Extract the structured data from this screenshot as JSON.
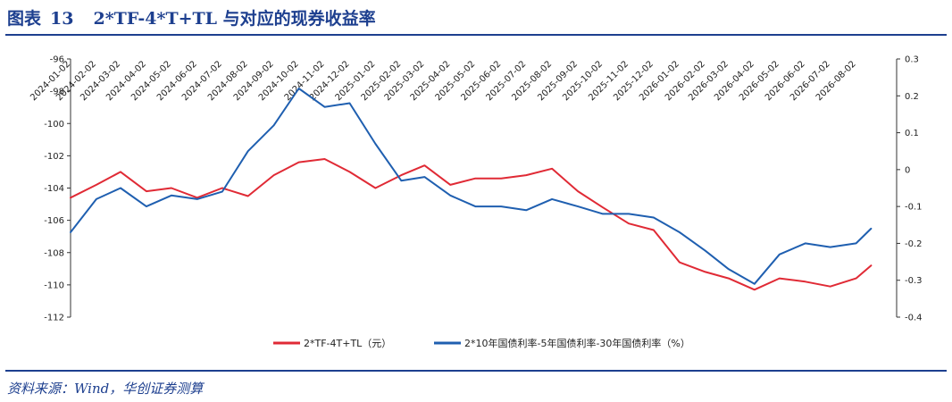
{
  "header": {
    "label": "图表",
    "number": "13",
    "title": "2*TF-4*T+TL 与对应的现券收益率"
  },
  "footer": {
    "source": "资料来源：Wind，华创证券测算"
  },
  "colors": {
    "series_futures": "#e02a35",
    "series_yield": "#1f5fb0",
    "brand": "#1d3f8f"
  },
  "chart_data": {
    "type": "line",
    "title": "",
    "x_ticks": [
      "2024-01-02",
      "2024-02-02",
      "2024-03-02",
      "2024-04-02",
      "2024-05-02",
      "2024-06-02",
      "2024-07-02",
      "2024-08-02",
      "2024-09-02",
      "2024-10-02",
      "2024-11-02",
      "2024-12-02",
      "2025-01-02",
      "2025-02-02",
      "2025-03-02",
      "2025-04-02",
      "2025-05-02",
      "2025-06-02",
      "2025-07-02",
      "2025-08-02",
      "2025-09-02",
      "2025-10-02",
      "2025-11-02",
      "2025-12-02",
      "2026-01-02",
      "2026-02-02",
      "2026-03-02",
      "2026-04-02",
      "2026-05-02",
      "2026-06-02",
      "2026-07-02",
      "2026-08-02"
    ],
    "y_left": {
      "min": -112,
      "max": -96,
      "step": 2,
      "ticks": [
        -96,
        -98,
        -100,
        -102,
        -104,
        -106,
        -108,
        -110,
        -112
      ]
    },
    "y_right": {
      "min": -0.4,
      "max": 0.3,
      "step": 0.1,
      "ticks": [
        0.3,
        0.2,
        0.1,
        0,
        -0.1,
        -0.2,
        -0.3,
        -0.4
      ]
    },
    "series": [
      {
        "name": "2*TF-4T+TL（元）",
        "axis": "left",
        "x": [
          "2024-01-02",
          "2024-02-02",
          "2024-03-02",
          "2024-04-02",
          "2024-05-02",
          "2024-06-02",
          "2024-07-02",
          "2024-08-02",
          "2024-09-02",
          "2024-10-02",
          "2024-11-02",
          "2024-12-02",
          "2025-01-02",
          "2025-02-02",
          "2025-03-02",
          "2025-04-02",
          "2025-05-02",
          "2025-06-02",
          "2025-07-02",
          "2025-08-02",
          "2025-09-02",
          "2025-10-02",
          "2025-11-02",
          "2025-12-02",
          "2026-01-02",
          "2026-02-02",
          "2026-03-02",
          "2026-04-02",
          "2026-05-02",
          "2026-06-02",
          "2026-07-02",
          "2026-08-02",
          "2026-08-20"
        ],
        "values": [
          -104.6,
          -103.8,
          -103.0,
          -104.2,
          -104.0,
          -104.6,
          -104.0,
          -104.5,
          -103.2,
          -102.4,
          -102.2,
          -103.0,
          -104.0,
          -103.2,
          -102.6,
          -103.8,
          -103.4,
          -103.4,
          -103.2,
          -102.8,
          -104.2,
          -105.2,
          -106.2,
          -106.6,
          -108.6,
          -109.2,
          -109.6,
          -110.3,
          -109.6,
          -109.8,
          -110.1,
          -109.6,
          -108.8
        ]
      },
      {
        "name": "2*10年国债利率-5年国债利率-30年国债利率（%）",
        "axis": "right",
        "x": [
          "2024-01-02",
          "2024-02-02",
          "2024-03-02",
          "2024-04-02",
          "2024-05-02",
          "2024-06-02",
          "2024-07-02",
          "2024-08-02",
          "2024-09-02",
          "2024-10-02",
          "2024-11-02",
          "2024-12-02",
          "2025-01-02",
          "2025-02-02",
          "2025-03-02",
          "2025-04-02",
          "2025-05-02",
          "2025-06-02",
          "2025-07-02",
          "2025-08-02",
          "2025-09-02",
          "2025-10-02",
          "2025-11-02",
          "2025-12-02",
          "2026-01-02",
          "2026-02-02",
          "2026-03-02",
          "2026-04-02",
          "2026-05-02",
          "2026-06-02",
          "2026-07-02",
          "2026-08-02",
          "2026-08-20"
        ],
        "values": [
          -0.17,
          -0.08,
          -0.05,
          -0.1,
          -0.07,
          -0.08,
          -0.06,
          0.05,
          0.12,
          0.22,
          0.17,
          0.18,
          0.07,
          -0.03,
          -0.02,
          -0.07,
          -0.1,
          -0.1,
          -0.11,
          -0.08,
          -0.1,
          -0.12,
          -0.12,
          -0.13,
          -0.17,
          -0.22,
          -0.27,
          -0.31,
          -0.23,
          -0.2,
          -0.21,
          -0.2,
          -0.16
        ]
      }
    ],
    "legend": "bottom",
    "grid": false
  }
}
